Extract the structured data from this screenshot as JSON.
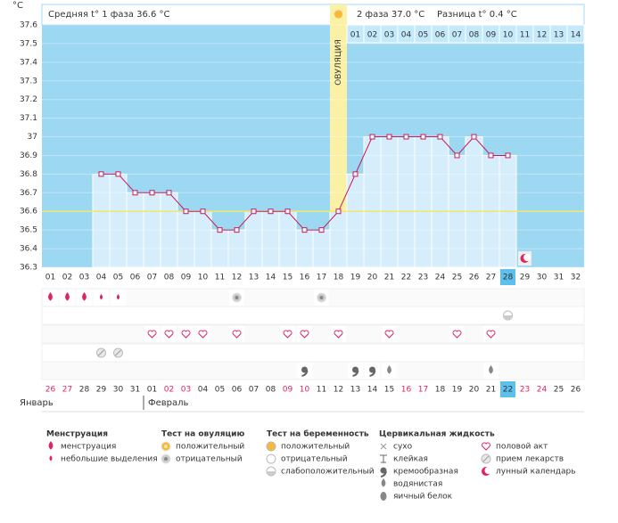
{
  "header": {
    "y_unit": "°С",
    "phase1": "Средняя t° 1 фаза 36.6 °С",
    "phase2": "2 фаза 37.0 °С",
    "difference": "Разница t° 0.4 °С"
  },
  "chart_data": {
    "type": "line",
    "categories": [
      "01",
      "02",
      "03",
      "04",
      "05",
      "06",
      "07",
      "08",
      "09",
      "10",
      "11",
      "12",
      "13",
      "14",
      "15",
      "16",
      "17",
      "18",
      "19",
      "20",
      "21",
      "22",
      "23",
      "24",
      "25",
      "26",
      "27",
      "28",
      "29",
      "30",
      "31",
      "32"
    ],
    "series": [
      {
        "color": "#c8195c",
        "values": [
          null,
          null,
          null,
          36.8,
          36.8,
          36.7,
          36.7,
          36.7,
          36.6,
          36.6,
          36.5,
          36.5,
          36.6,
          36.6,
          36.6,
          36.5,
          36.5,
          36.6,
          36.8,
          37.0,
          37.0,
          37.0,
          37.0,
          37.0,
          36.9,
          37.0,
          36.9,
          36.9,
          null,
          null,
          null,
          null
        ]
      }
    ],
    "ylim": [
      36.3,
      37.6
    ],
    "yticks": [
      36.3,
      36.4,
      36.5,
      36.6,
      36.7,
      36.8,
      36.9,
      37,
      37.1,
      37.2,
      37.3,
      37.4,
      37.5,
      37.6
    ],
    "coverline": 36.6,
    "coverline_color": "#f3e76a",
    "background": "#9dd8f3",
    "bar_color": "#d6eefb",
    "ovulation": {
      "label": "ОВУЛЯЦИЯ",
      "day": "18",
      "color": "#fbf1a6"
    },
    "phase2_days": [
      "01",
      "02",
      "03",
      "04",
      "05",
      "06",
      "07",
      "08",
      "09",
      "10",
      "11",
      "12",
      "13",
      "14"
    ],
    "today": "28",
    "today_color": "#5bc0eb"
  },
  "calendar": {
    "weekend_color": "#e0245e",
    "months": [
      "Январь",
      "Февраль"
    ],
    "dates": [
      {
        "label": "26",
        "weekend": true
      },
      {
        "label": "27",
        "weekend": true
      },
      {
        "label": "28",
        "weekend": false
      },
      {
        "label": "29",
        "weekend": false
      },
      {
        "label": "30",
        "weekend": false
      },
      {
        "label": "31",
        "weekend": false
      },
      {
        "label": "01",
        "weekend": false
      },
      {
        "label": "02",
        "weekend": true
      },
      {
        "label": "03",
        "weekend": true
      },
      {
        "label": "04",
        "weekend": false
      },
      {
        "label": "05",
        "weekend": false
      },
      {
        "label": "06",
        "weekend": false
      },
      {
        "label": "07",
        "weekend": false
      },
      {
        "label": "08",
        "weekend": false
      },
      {
        "label": "09",
        "weekend": true
      },
      {
        "label": "10",
        "weekend": true
      },
      {
        "label": "11",
        "weekend": false
      },
      {
        "label": "12",
        "weekend": false
      },
      {
        "label": "13",
        "weekend": false
      },
      {
        "label": "14",
        "weekend": false
      },
      {
        "label": "15",
        "weekend": false
      },
      {
        "label": "16",
        "weekend": true
      },
      {
        "label": "17",
        "weekend": true
      },
      {
        "label": "18",
        "weekend": false
      },
      {
        "label": "19",
        "weekend": false
      },
      {
        "label": "20",
        "weekend": false
      },
      {
        "label": "21",
        "weekend": false
      },
      {
        "label": "22",
        "weekend": false
      },
      {
        "label": "23",
        "weekend": true
      },
      {
        "label": "24",
        "weekend": true
      },
      {
        "label": "25",
        "weekend": false
      },
      {
        "label": "26",
        "weekend": false
      }
    ]
  },
  "legend": {
    "groups": [
      {
        "title": "Менструация",
        "items": [
          {
            "label": "менструация",
            "days": [
              "01",
              "02",
              "03"
            ]
          },
          {
            "label": "небольшие выделения",
            "days": [
              "04",
              "05"
            ]
          }
        ]
      },
      {
        "title": "Тест на овуляцию",
        "items": [
          {
            "label": "положительный",
            "days": []
          },
          {
            "label": "отрицательный",
            "days": [
              "12",
              "17"
            ]
          }
        ]
      },
      {
        "title": "Тест на беременность",
        "items": [
          {
            "label": "положительный",
            "days": []
          },
          {
            "label": "отрицательный",
            "days": []
          },
          {
            "label": "слабоположительный",
            "days": [
              "28"
            ]
          }
        ]
      },
      {
        "title": "Цервикальная жидкость",
        "items": [
          {
            "label": "сухо",
            "days": []
          },
          {
            "label": "клейкая",
            "days": []
          },
          {
            "label": "кремообразная",
            "days": [
              "16",
              "19",
              "20"
            ]
          },
          {
            "label": "водянистая",
            "days": [
              "21",
              "27"
            ]
          },
          {
            "label": "яичный белок",
            "days": []
          }
        ]
      },
      {
        "items": [
          {
            "label": "половой акт",
            "days": [
              "07",
              "08",
              "09",
              "10",
              "12",
              "15",
              "16",
              "18",
              "21",
              "25",
              "27"
            ]
          },
          {
            "label": "прием лекарств",
            "days": [
              "04",
              "05"
            ]
          },
          {
            "label": "лунный календарь",
            "days": [
              "29"
            ]
          }
        ]
      }
    ]
  }
}
